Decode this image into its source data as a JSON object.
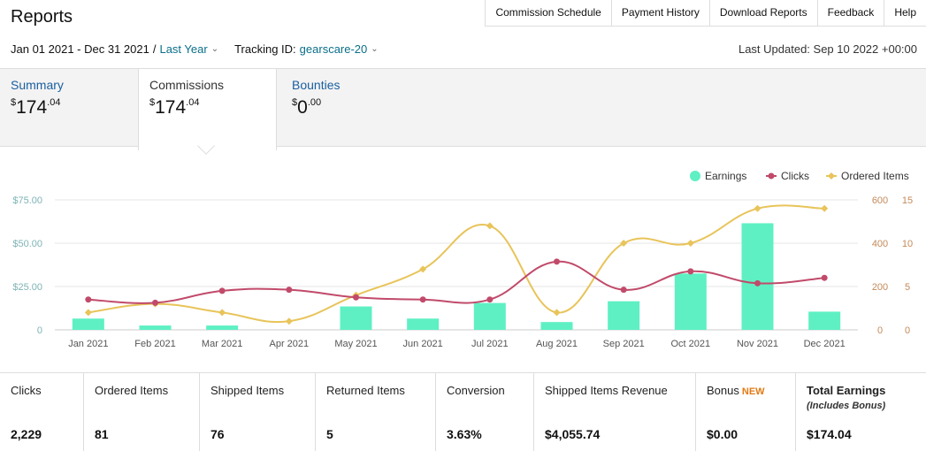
{
  "page": {
    "title": "Reports"
  },
  "topnav": [
    "Commission Schedule",
    "Payment History",
    "Download Reports",
    "Feedback",
    "Help"
  ],
  "filters": {
    "date_range": "Jan 01 2021 - Dec 31 2021",
    "separator": "/",
    "preset": "Last Year",
    "tracking_label": "Tracking ID:",
    "tracking_id": "gearscare-20",
    "last_updated": "Last Updated: Sep 10 2022 +00:00"
  },
  "tabs": [
    {
      "label": "Summary",
      "dollar": "$",
      "whole": "174",
      "cents": ".04"
    },
    {
      "label": "Commissions",
      "dollar": "$",
      "whole": "174",
      "cents": ".04"
    },
    {
      "label": "Bounties",
      "dollar": "$",
      "whole": "0",
      "cents": ".00"
    }
  ],
  "chart_data": {
    "type": "bar",
    "categories": [
      "Jan 2021",
      "Feb 2021",
      "Mar 2021",
      "Apr 2021",
      "May 2021",
      "Jun 2021",
      "Jul 2021",
      "Aug 2021",
      "Sep 2021",
      "Oct 2021",
      "Nov 2021",
      "Dec 2021"
    ],
    "legend": [
      "Earnings",
      "Clicks",
      "Ordered Items"
    ],
    "series": [
      {
        "name": "Earnings",
        "type": "bar",
        "axis": "left",
        "color": "#5ef0c3",
        "values": [
          6.5,
          2.5,
          2.5,
          0,
          13.5,
          6.5,
          15.5,
          4.5,
          16.5,
          32.5,
          61.5,
          10.5
        ]
      },
      {
        "name": "Clicks",
        "type": "line",
        "axis": "right-inner",
        "color": "#c14a6a",
        "values": [
          140,
          125,
          180,
          185,
          150,
          140,
          140,
          315,
          185,
          270,
          215,
          240
        ]
      },
      {
        "name": "Ordered Items",
        "type": "line",
        "axis": "right-outer",
        "color": "#e8c45a",
        "values": [
          2,
          3,
          2,
          1,
          4,
          7,
          12,
          2,
          10,
          10,
          14,
          14
        ]
      }
    ],
    "left_axis": {
      "ticks": [
        "0",
        "$25.00",
        "$50.00",
        "$75.00"
      ],
      "ylim": [
        0,
        75
      ]
    },
    "right_inner_axis": {
      "ticks": [
        "0",
        "200",
        "400",
        "600"
      ],
      "ylim": [
        0,
        600
      ]
    },
    "right_outer_axis": {
      "ticks": [
        "0",
        "5",
        "10",
        "15"
      ],
      "ylim": [
        0,
        15
      ]
    },
    "grid": true,
    "legend_position": "top-right"
  },
  "stats": [
    {
      "label": "Clicks",
      "value": "2,229"
    },
    {
      "label": "Ordered Items",
      "value": "81"
    },
    {
      "label": "Shipped Items",
      "value": "76"
    },
    {
      "label": "Returned Items",
      "value": "5"
    },
    {
      "label": "Conversion",
      "value": "3.63%"
    },
    {
      "label": "Shipped Items Revenue",
      "value": "$4,055.74"
    },
    {
      "label": "Bonus",
      "badge": "NEW",
      "value": "$0.00"
    },
    {
      "label": "Total Earnings",
      "sub": "(Includes Bonus)",
      "value": "$174.04"
    }
  ]
}
